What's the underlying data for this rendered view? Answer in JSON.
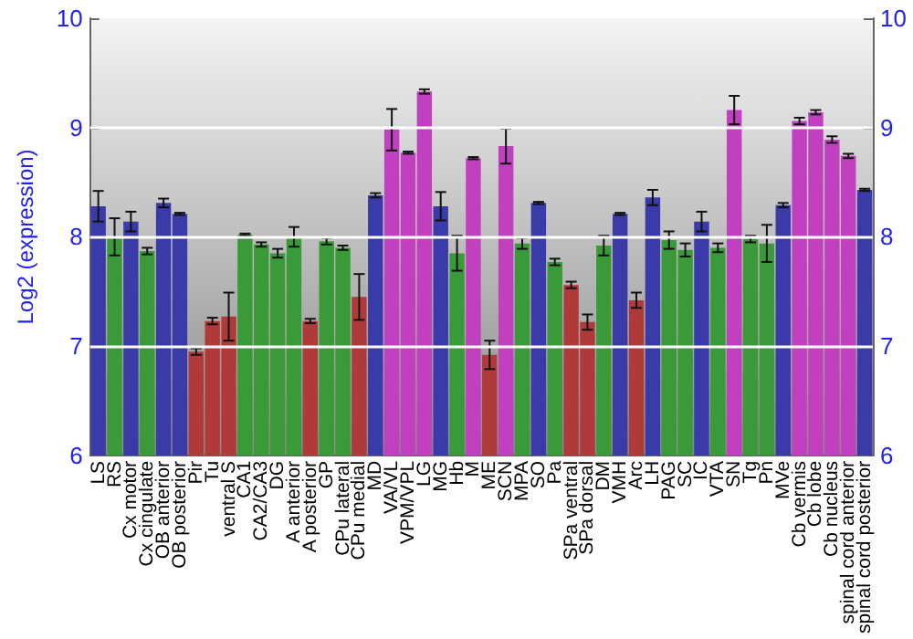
{
  "chart_data": {
    "type": "bar",
    "ylabel": "Log2 (expression)",
    "categories": [
      "LS",
      "RS",
      "Cx motor",
      "Cx cingulate",
      "OB anterior",
      "OB posterior",
      "Pir",
      "Tu",
      "ventral S",
      "CA1",
      "CA2/CA3",
      "DG",
      "A anterior",
      "A posterior",
      "GP",
      "CPu lateral",
      "CPu medial",
      "MD",
      "VA/VL",
      "VPM/VPL",
      "LG",
      "MG",
      "Hb",
      "M",
      "ME",
      "SCN",
      "MPA",
      "SO",
      "Pa",
      "SPa ventral",
      "SPa dorsal",
      "DM",
      "VMH",
      "Arc",
      "LH",
      "PAG",
      "SC",
      "IC",
      "VTA",
      "SN",
      "Tg",
      "Pn",
      "MVe",
      "Cb vermis",
      "Cb lobe",
      "Cb nucleus",
      "spinal cord anterior",
      "spinal cord posterior"
    ],
    "values": [
      8.28,
      8.0,
      8.14,
      7.87,
      8.31,
      8.21,
      6.95,
      7.23,
      7.27,
      8.02,
      7.93,
      7.85,
      8.0,
      7.23,
      7.96,
      7.9,
      7.45,
      8.38,
      8.98,
      8.77,
      9.33,
      8.28,
      7.85,
      8.72,
      6.92,
      8.83,
      7.94,
      8.31,
      7.77,
      7.56,
      7.22,
      7.92,
      8.21,
      7.42,
      8.36,
      7.97,
      7.88,
      8.14,
      7.9,
      9.16,
      7.98,
      7.94,
      8.29,
      9.06,
      9.14,
      8.89,
      8.74,
      8.43
    ],
    "errors": [
      0.14,
      0.17,
      0.09,
      0.03,
      0.04,
      0.01,
      0.03,
      0.03,
      0.22,
      0.01,
      0.02,
      0.04,
      0.09,
      0.02,
      0.03,
      0.02,
      0.21,
      0.02,
      0.19,
      0.01,
      0.02,
      0.13,
      0.16,
      0.01,
      0.13,
      0.16,
      0.05,
      0.01,
      0.03,
      0.03,
      0.07,
      0.09,
      0.01,
      0.07,
      0.07,
      0.08,
      0.06,
      0.09,
      0.04,
      0.13,
      0.03,
      0.17,
      0.02,
      0.03,
      0.02,
      0.03,
      0.02,
      0.01
    ],
    "colors": [
      "#3a3aa8",
      "#3a9a3a",
      "#3a3aa8",
      "#3a9a3a",
      "#3a3aa8",
      "#3a3aa8",
      "#b03a3a",
      "#b03a3a",
      "#b03a3a",
      "#3a9a3a",
      "#3a9a3a",
      "#3a9a3a",
      "#3a9a3a",
      "#b03a3a",
      "#3a9a3a",
      "#3a9a3a",
      "#b03a3a",
      "#3a3aa8",
      "#c040c0",
      "#c040c0",
      "#c040c0",
      "#3a3aa8",
      "#3a9a3a",
      "#c040c0",
      "#b03a3a",
      "#c040c0",
      "#3a9a3a",
      "#3a3aa8",
      "#3a9a3a",
      "#b03a3a",
      "#b03a3a",
      "#3a9a3a",
      "#3a3aa8",
      "#b03a3a",
      "#3a3aa8",
      "#3a9a3a",
      "#3a9a3a",
      "#3a3aa8",
      "#3a9a3a",
      "#c040c0",
      "#3a9a3a",
      "#3a9a3a",
      "#3a3aa8",
      "#c040c0",
      "#c040c0",
      "#c040c0",
      "#c040c0",
      "#3a3aa8"
    ],
    "ylim": [
      6,
      10
    ],
    "yticks": [
      6,
      7,
      8,
      9,
      10
    ],
    "y2lim": [
      6,
      10
    ],
    "y2ticks": [
      6,
      7,
      8,
      9,
      10
    ],
    "grid": "y"
  }
}
